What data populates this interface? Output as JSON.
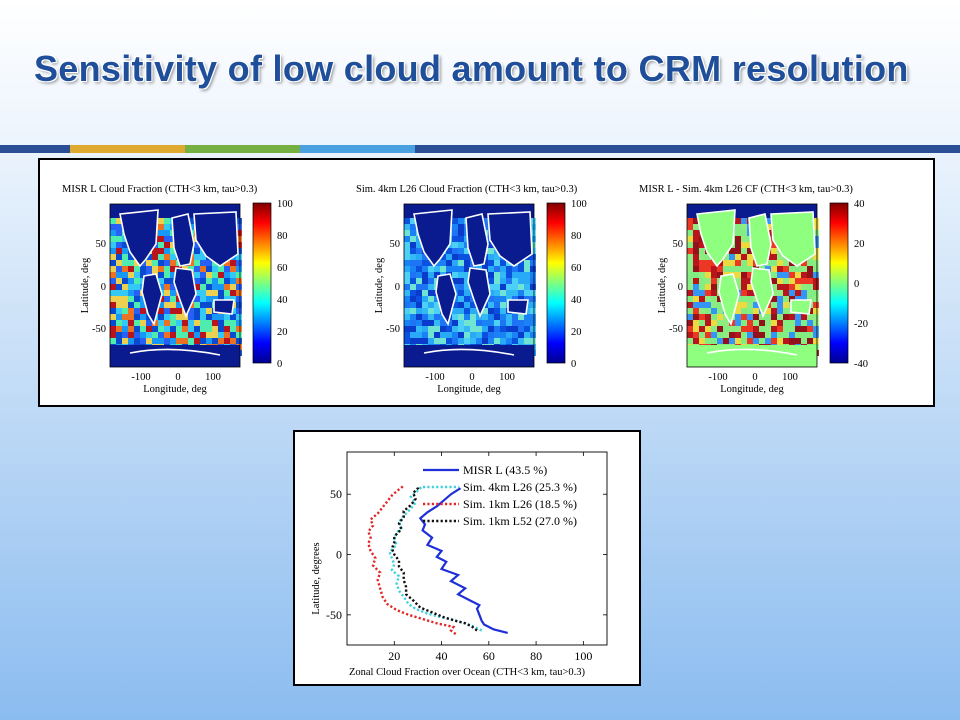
{
  "slide": {
    "title": "Sensitivity of low cloud amount to CRM resolution",
    "colors": {
      "title": "#1f4e9a",
      "rule_segments": [
        "#2a4f96",
        "#e0a92f",
        "#76b043",
        "#4aa1e0",
        "#2a4f96"
      ]
    }
  },
  "maps": [
    {
      "title": "MISR L Cloud Fraction (CTH<3 km, tau>0.3)",
      "ylabel": "Latitude, deg",
      "xlabel": "Longitude, deg",
      "yticks": [
        "50",
        "0",
        "-50"
      ],
      "xticks": [
        "-100",
        "0",
        "100"
      ],
      "colorbar_ticks": [
        "100",
        "80",
        "60",
        "40",
        "20",
        "0"
      ],
      "colormap": "jet"
    },
    {
      "title": "Sim. 4km L26 Cloud Fraction (CTH<3 km, tau>0.3)",
      "ylabel": "Latitude, deg",
      "xlabel": "Longitude, deg",
      "yticks": [
        "50",
        "0",
        "-50"
      ],
      "xticks": [
        "-100",
        "0",
        "100"
      ],
      "colorbar_ticks": [
        "100",
        "80",
        "60",
        "40",
        "20",
        "0"
      ],
      "colormap": "jet"
    },
    {
      "title": "MISR L - Sim. 4km L26 CF (CTH<3 km, tau>0.3)",
      "ylabel": "Latitude, deg",
      "xlabel": "Longitude, deg",
      "yticks": [
        "50",
        "0",
        "-50"
      ],
      "xticks": [
        "-100",
        "0",
        "100"
      ],
      "colorbar_ticks": [
        "40",
        "20",
        "0",
        "-20",
        "-40"
      ],
      "colormap": "jet"
    }
  ],
  "chart_data": {
    "type": "line",
    "title": "",
    "xlabel": "Zonal Cloud Fraction over Ocean (CTH<3 km, tau>0.3)",
    "ylabel": "Latitude, degrees",
    "xlim": [
      0,
      110
    ],
    "ylim": [
      -75,
      85
    ],
    "xticks": [
      20,
      40,
      60,
      80,
      100
    ],
    "yticks": [
      -50,
      0,
      50
    ],
    "legend_position": "top-right",
    "series": [
      {
        "name": "MISR L (43.5 %)",
        "color": "#1f2fd8",
        "style": "solid",
        "points": [
          [
            68,
            -65
          ],
          [
            62,
            -62
          ],
          [
            58,
            -58
          ],
          [
            57,
            -55
          ],
          [
            56,
            -50
          ],
          [
            55,
            -45
          ],
          [
            56,
            -42
          ],
          [
            52,
            -38
          ],
          [
            47,
            -33
          ],
          [
            50,
            -28
          ],
          [
            44,
            -22
          ],
          [
            47,
            -17
          ],
          [
            40,
            -12
          ],
          [
            42,
            -6
          ],
          [
            38,
            -2
          ],
          [
            40,
            3
          ],
          [
            34,
            8
          ],
          [
            36,
            14
          ],
          [
            32,
            20
          ],
          [
            33,
            25
          ],
          [
            31,
            30
          ],
          [
            34,
            35
          ],
          [
            38,
            40
          ],
          [
            41,
            45
          ],
          [
            44,
            50
          ],
          [
            48,
            55
          ]
        ]
      },
      {
        "name": "Sim. 4km L26 (25.3 %)",
        "color": "#3fd2dc",
        "style": "dashed",
        "points": [
          [
            57,
            -63
          ],
          [
            54,
            -60
          ],
          [
            50,
            -57
          ],
          [
            45,
            -54
          ],
          [
            40,
            -52
          ],
          [
            34,
            -49
          ],
          [
            29,
            -45
          ],
          [
            26,
            -41
          ],
          [
            24,
            -35
          ],
          [
            22,
            -30
          ],
          [
            21,
            -24
          ],
          [
            22,
            -18
          ],
          [
            19,
            -13
          ],
          [
            20,
            -8
          ],
          [
            19,
            -3
          ],
          [
            18,
            2
          ],
          [
            21,
            8
          ],
          [
            20,
            13
          ],
          [
            21,
            18
          ],
          [
            23,
            22
          ],
          [
            22,
            27
          ],
          [
            24,
            32
          ],
          [
            27,
            38
          ],
          [
            29,
            43
          ],
          [
            27,
            48
          ],
          [
            30,
            53
          ],
          [
            32,
            57
          ]
        ]
      },
      {
        "name": "Sim. 1km L26 (18.5 %)",
        "color": "#e02828",
        "style": "dashed",
        "points": [
          [
            46,
            -66
          ],
          [
            44,
            -63
          ],
          [
            45,
            -60
          ],
          [
            38,
            -57
          ],
          [
            33,
            -54
          ],
          [
            26,
            -50
          ],
          [
            21,
            -46
          ],
          [
            17,
            -41
          ],
          [
            15,
            -35
          ],
          [
            14,
            -28
          ],
          [
            13,
            -21
          ],
          [
            14,
            -15
          ],
          [
            11,
            -9
          ],
          [
            12,
            -3
          ],
          [
            10,
            3
          ],
          [
            9,
            9
          ],
          [
            10,
            14
          ],
          [
            9,
            19
          ],
          [
            11,
            24
          ],
          [
            10,
            29
          ],
          [
            13,
            34
          ],
          [
            15,
            39
          ],
          [
            17,
            44
          ],
          [
            19,
            49
          ],
          [
            22,
            54
          ],
          [
            24,
            57
          ]
        ]
      },
      {
        "name": "Sim. 1km L52 (27.0 %)",
        "color": "#111111",
        "style": "dashed",
        "points": [
          [
            55,
            -63
          ],
          [
            53,
            -60
          ],
          [
            50,
            -57
          ],
          [
            46,
            -55
          ],
          [
            41,
            -52
          ],
          [
            36,
            -48
          ],
          [
            31,
            -44
          ],
          [
            28,
            -38
          ],
          [
            25,
            -33
          ],
          [
            25,
            -27
          ],
          [
            24,
            -21
          ],
          [
            24,
            -15
          ],
          [
            22,
            -10
          ],
          [
            22,
            -5
          ],
          [
            20,
            0
          ],
          [
            19,
            5
          ],
          [
            20,
            10
          ],
          [
            20,
            15
          ],
          [
            23,
            21
          ],
          [
            22,
            26
          ],
          [
            24,
            31
          ],
          [
            24,
            36
          ],
          [
            27,
            41
          ],
          [
            29,
            46
          ],
          [
            28,
            51
          ],
          [
            30,
            55
          ],
          [
            30,
            57
          ]
        ]
      }
    ]
  }
}
